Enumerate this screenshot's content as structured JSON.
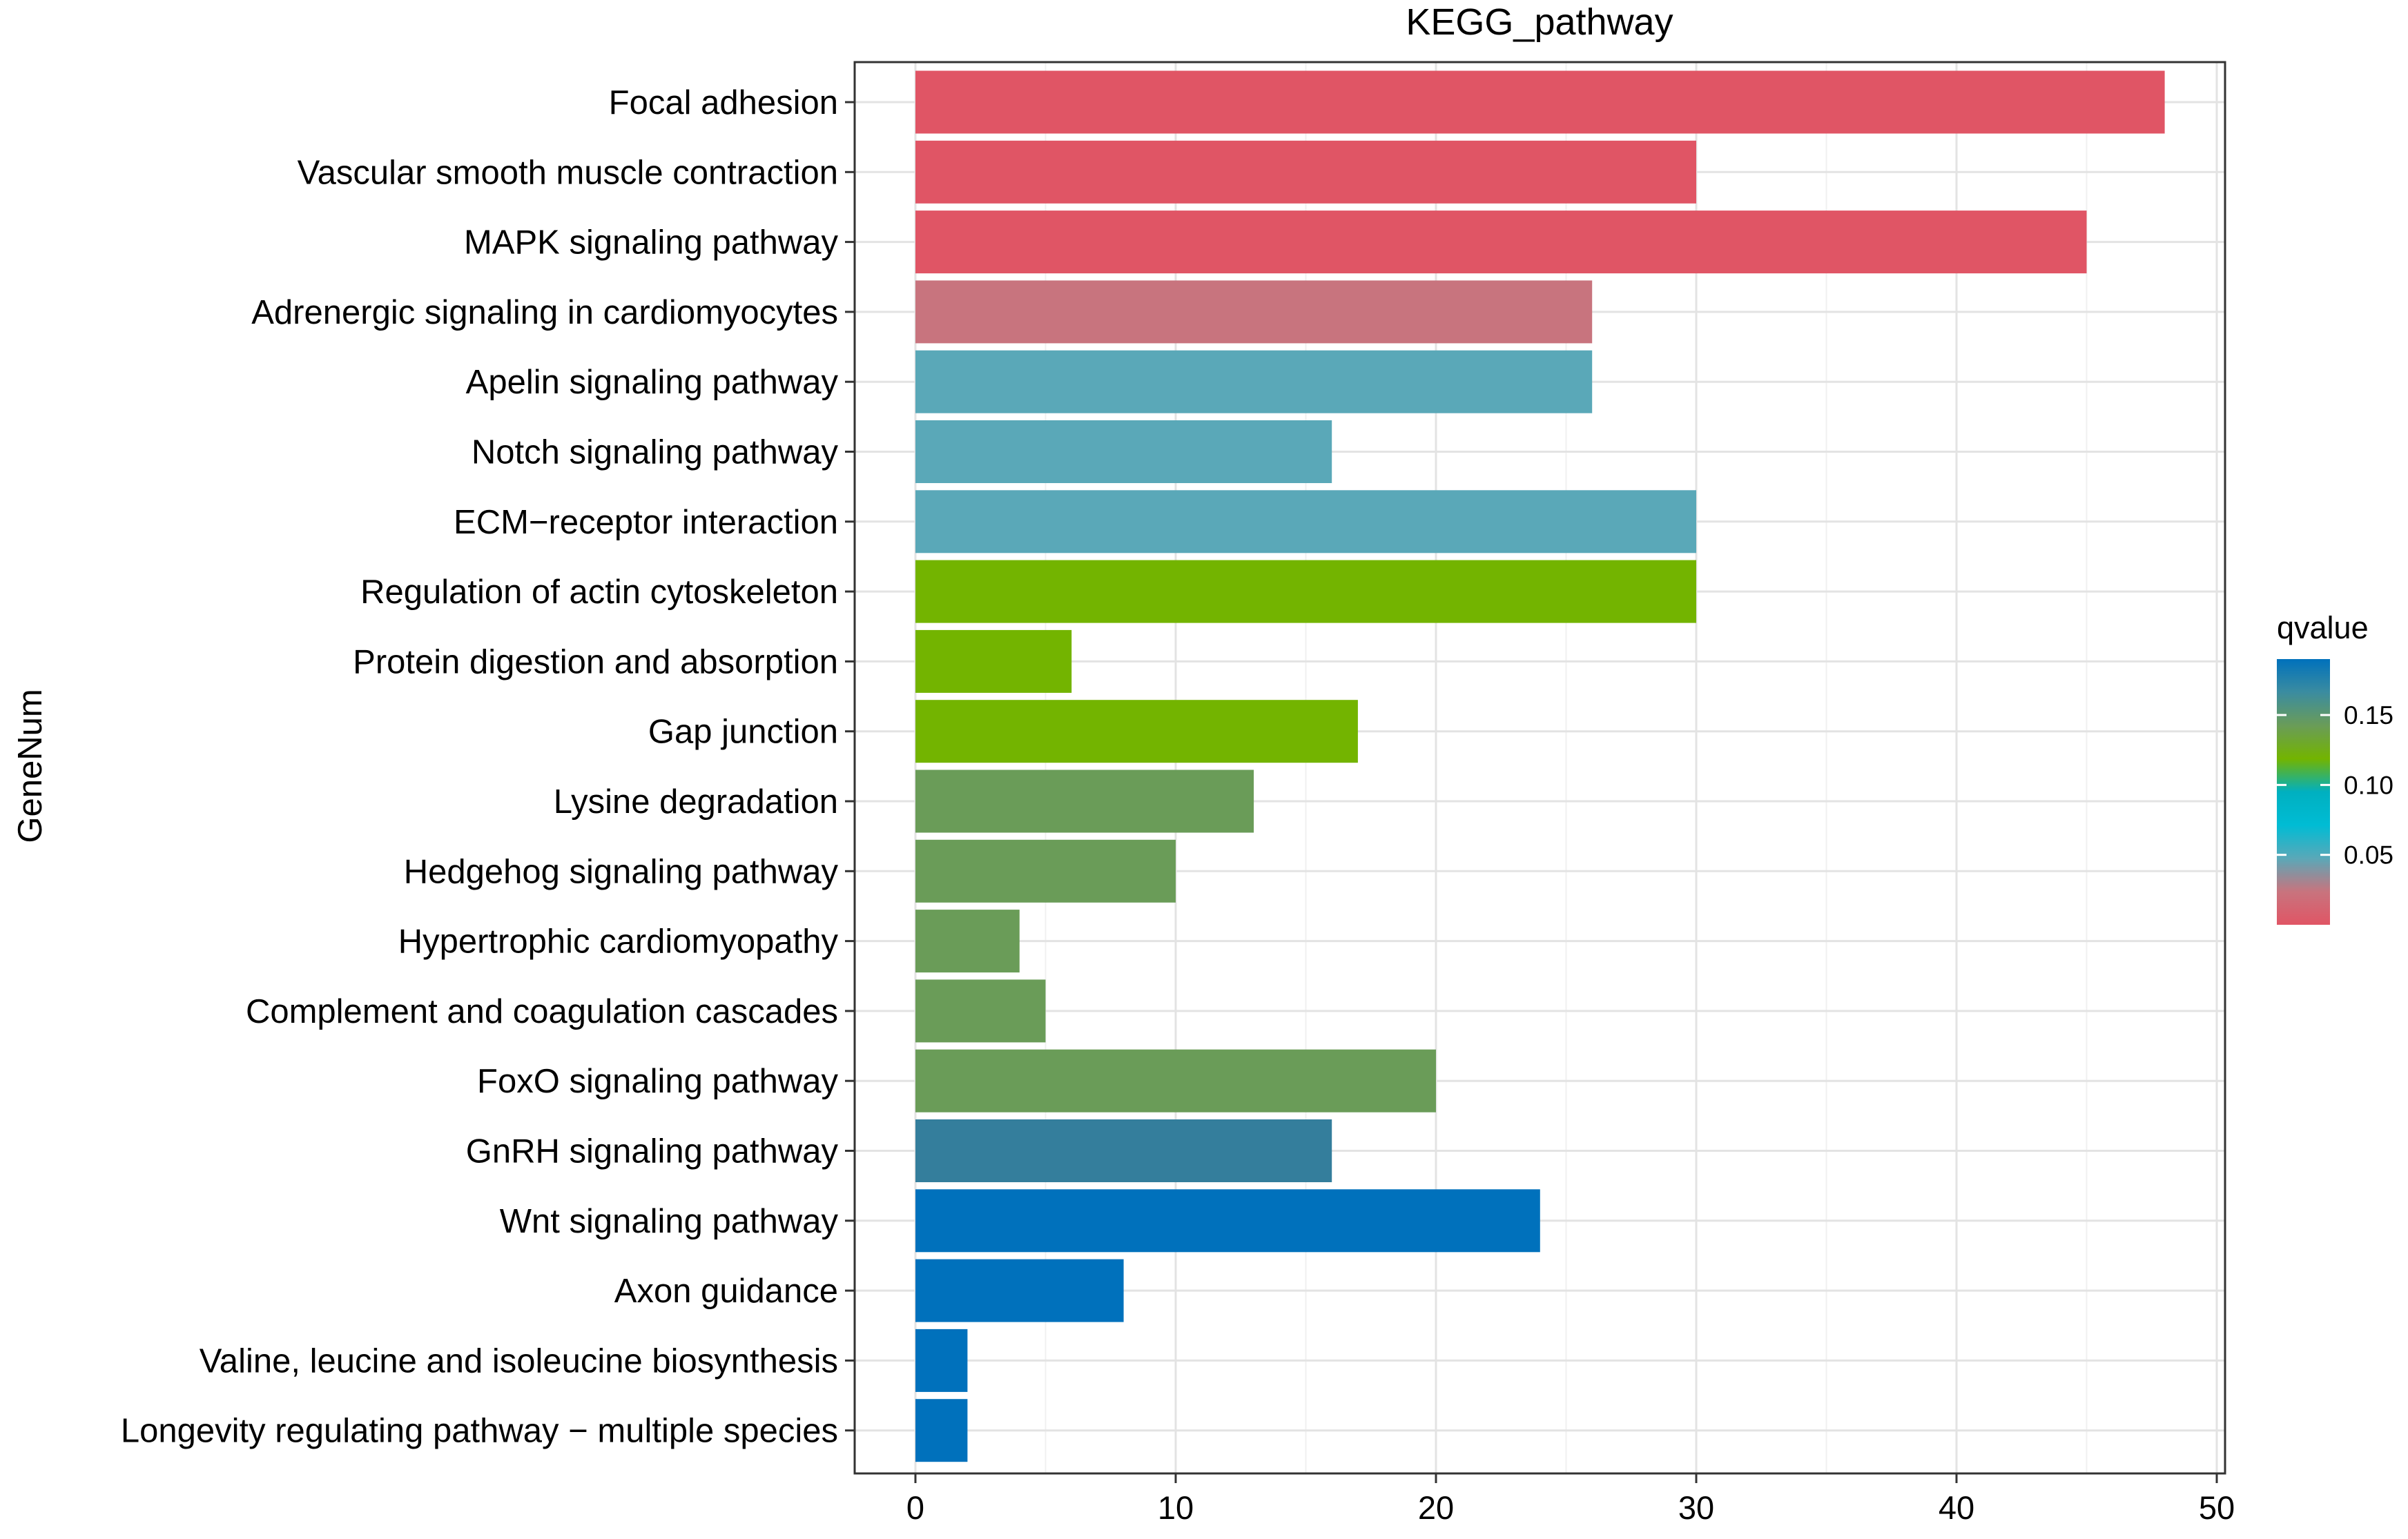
{
  "chart_data": {
    "type": "bar",
    "orientation": "horizontal",
    "title": "KEGG_pathway",
    "xlabel": "",
    "ylabel": "GeneNum",
    "xlim": [
      0,
      50
    ],
    "x_ticks": [
      0,
      10,
      20,
      30,
      40,
      50
    ],
    "grid": true,
    "categories": [
      "Focal adhesion",
      "Vascular smooth muscle contraction",
      "MAPK signaling pathway",
      "Adrenergic signaling in cardiomyocytes",
      "Apelin signaling pathway",
      "Notch signaling pathway",
      "ECM−receptor interaction",
      "Regulation of actin cytoskeleton",
      "Protein digestion and absorption",
      "Gap junction",
      "Lysine degradation",
      "Hedgehog signaling pathway",
      "Hypertrophic cardiomyopathy",
      "Complement and coagulation cascades",
      "FoxO signaling pathway",
      "GnRH signaling pathway",
      "Wnt signaling pathway",
      "Axon guidance",
      "Valine, leucine and isoleucine biosynthesis",
      "Longevity regulating pathway − multiple species"
    ],
    "values": [
      48,
      30,
      45,
      26,
      26,
      16,
      30,
      30,
      6,
      17,
      13,
      10,
      4,
      5,
      20,
      16,
      24,
      8,
      2,
      2
    ],
    "bar_colors": [
      "#e05565",
      "#e05565",
      "#e05565",
      "#c8747e",
      "#5aa8b8",
      "#5aa8b8",
      "#5aa8b8",
      "#73b400",
      "#73b400",
      "#73b400",
      "#6a9c58",
      "#6a9c58",
      "#6a9c58",
      "#6a9c58",
      "#6a9c58",
      "#347e9c",
      "#0071bc",
      "#0071bc",
      "#0071bc",
      "#0071bc"
    ],
    "legend": {
      "title": "qvalue",
      "placement": "right",
      "ticks": [
        "0.15",
        "0.10",
        "0.05"
      ],
      "tick_values": [
        0.15,
        0.1,
        0.05
      ],
      "range": [
        0.0,
        0.19
      ],
      "gradient_top_to_bottom": [
        "#0071bc",
        "#3b8ca0",
        "#6a9c58",
        "#73b400",
        "#00b0c0",
        "#00bcd4",
        "#5aa8b8",
        "#c8747e",
        "#e05565"
      ]
    }
  }
}
